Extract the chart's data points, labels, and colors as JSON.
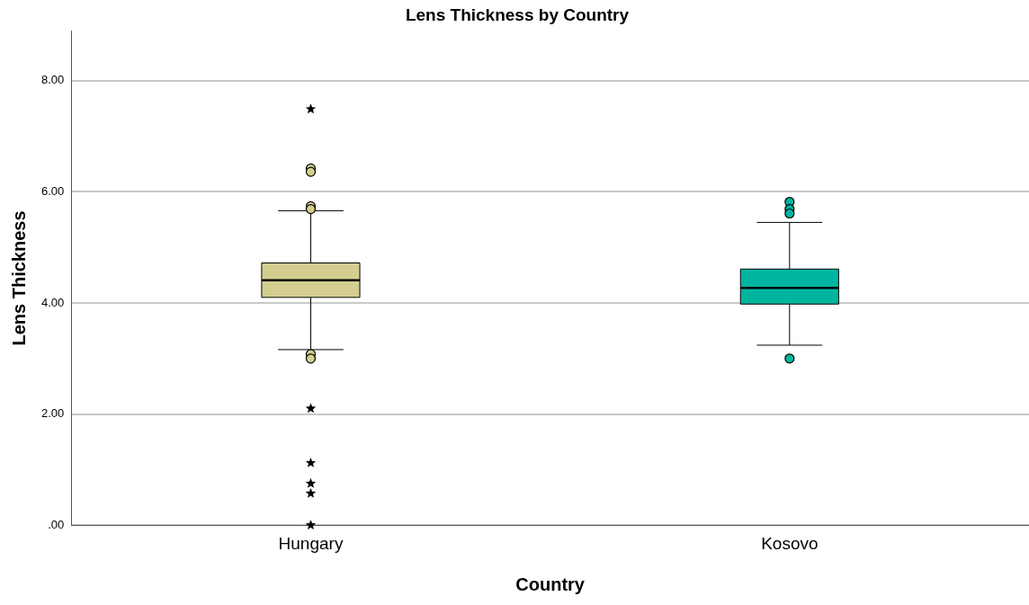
{
  "chart_data": {
    "type": "box",
    "title": "Lens Thickness by Country",
    "xlabel": "Country",
    "ylabel": "Lens Thickness",
    "categories": [
      "Hungary",
      "Kosovo"
    ],
    "colors": [
      "#d3ce8f",
      "#00b5a0"
    ],
    "boxes": [
      {
        "low": 3.16,
        "q1": 4.1,
        "median": 4.41,
        "q3": 4.72,
        "high": 5.66,
        "outliers": [
          6.42,
          6.36,
          5.74,
          5.69,
          3.08,
          3.0
        ]
      },
      {
        "low": 3.24,
        "q1": 3.98,
        "median": 4.27,
        "q3": 4.61,
        "high": 5.45,
        "outliers": [
          5.82,
          5.69,
          5.61,
          3.0
        ]
      }
    ],
    "series": [
      {
        "type": "scatter",
        "marker": "star",
        "color": "#000000",
        "x": [
          "Hungary",
          "Hungary",
          "Hungary",
          "Hungary",
          "Hungary",
          "Hungary"
        ],
        "values": [
          7.49,
          2.1,
          1.12,
          0.75,
          0.57,
          0
        ]
      }
    ],
    "ylim": [
      0,
      8.89
    ],
    "yticks": [
      {
        "value": 0,
        "label": ".00"
      },
      {
        "value": 2,
        "label": "2.00"
      },
      {
        "value": 4,
        "label": "4.00"
      },
      {
        "value": 6,
        "label": "6.00"
      },
      {
        "value": 8,
        "label": "8.00"
      }
    ],
    "grid": "y"
  }
}
